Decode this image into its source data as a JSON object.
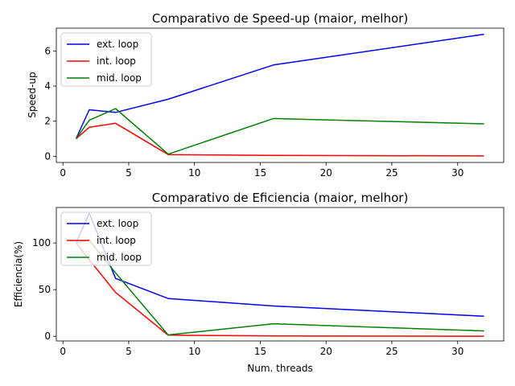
{
  "chart_data": [
    {
      "type": "line",
      "title": "Comparativo de Speed-up (maior, melhor)",
      "xlabel": "",
      "ylabel": "Speed-up",
      "xlim": [
        -0.5,
        33.5
      ],
      "ylim": [
        -0.35,
        7.3
      ],
      "xticks": [
        0,
        5,
        10,
        15,
        20,
        25,
        30
      ],
      "yticks": [
        0,
        2,
        4,
        6
      ],
      "legend": "upper-left",
      "grid": false,
      "x": [
        1,
        2,
        4,
        8,
        16,
        32
      ],
      "series": [
        {
          "name": "ext. loop",
          "color": "#0000ff",
          "values": [
            1.0,
            2.65,
            2.5,
            3.25,
            5.2,
            6.95
          ]
        },
        {
          "name": "int. loop",
          "color": "#ff0000",
          "values": [
            1.0,
            1.65,
            1.88,
            0.1,
            0.05,
            0.02
          ]
        },
        {
          "name": "mid. loop",
          "color": "#008000",
          "values": [
            1.0,
            2.05,
            2.72,
            0.12,
            2.15,
            1.85
          ]
        }
      ]
    },
    {
      "type": "line",
      "title": "Comparativo de Eficiencia (maior, melhor)",
      "xlabel": "Num. threads",
      "ylabel": "Efficiencia(%)",
      "xlim": [
        -0.5,
        33.5
      ],
      "ylim": [
        -5,
        138
      ],
      "xticks": [
        0,
        5,
        10,
        15,
        20,
        25,
        30
      ],
      "yticks": [
        0,
        50,
        100
      ],
      "legend": "upper-left",
      "grid": false,
      "x": [
        1,
        2,
        4,
        8,
        16,
        32
      ],
      "series": [
        {
          "name": "ext. loop",
          "color": "#0000ff",
          "values": [
            100,
            132,
            62,
            40.5,
            32.5,
            21.5
          ]
        },
        {
          "name": "int. loop",
          "color": "#ff0000",
          "values": [
            100,
            82,
            47,
            1.2,
            0.3,
            0.1
          ]
        },
        {
          "name": "mid. loop",
          "color": "#008000",
          "values": [
            100,
            103,
            68,
            1.5,
            13.4,
            5.8
          ]
        }
      ]
    }
  ]
}
